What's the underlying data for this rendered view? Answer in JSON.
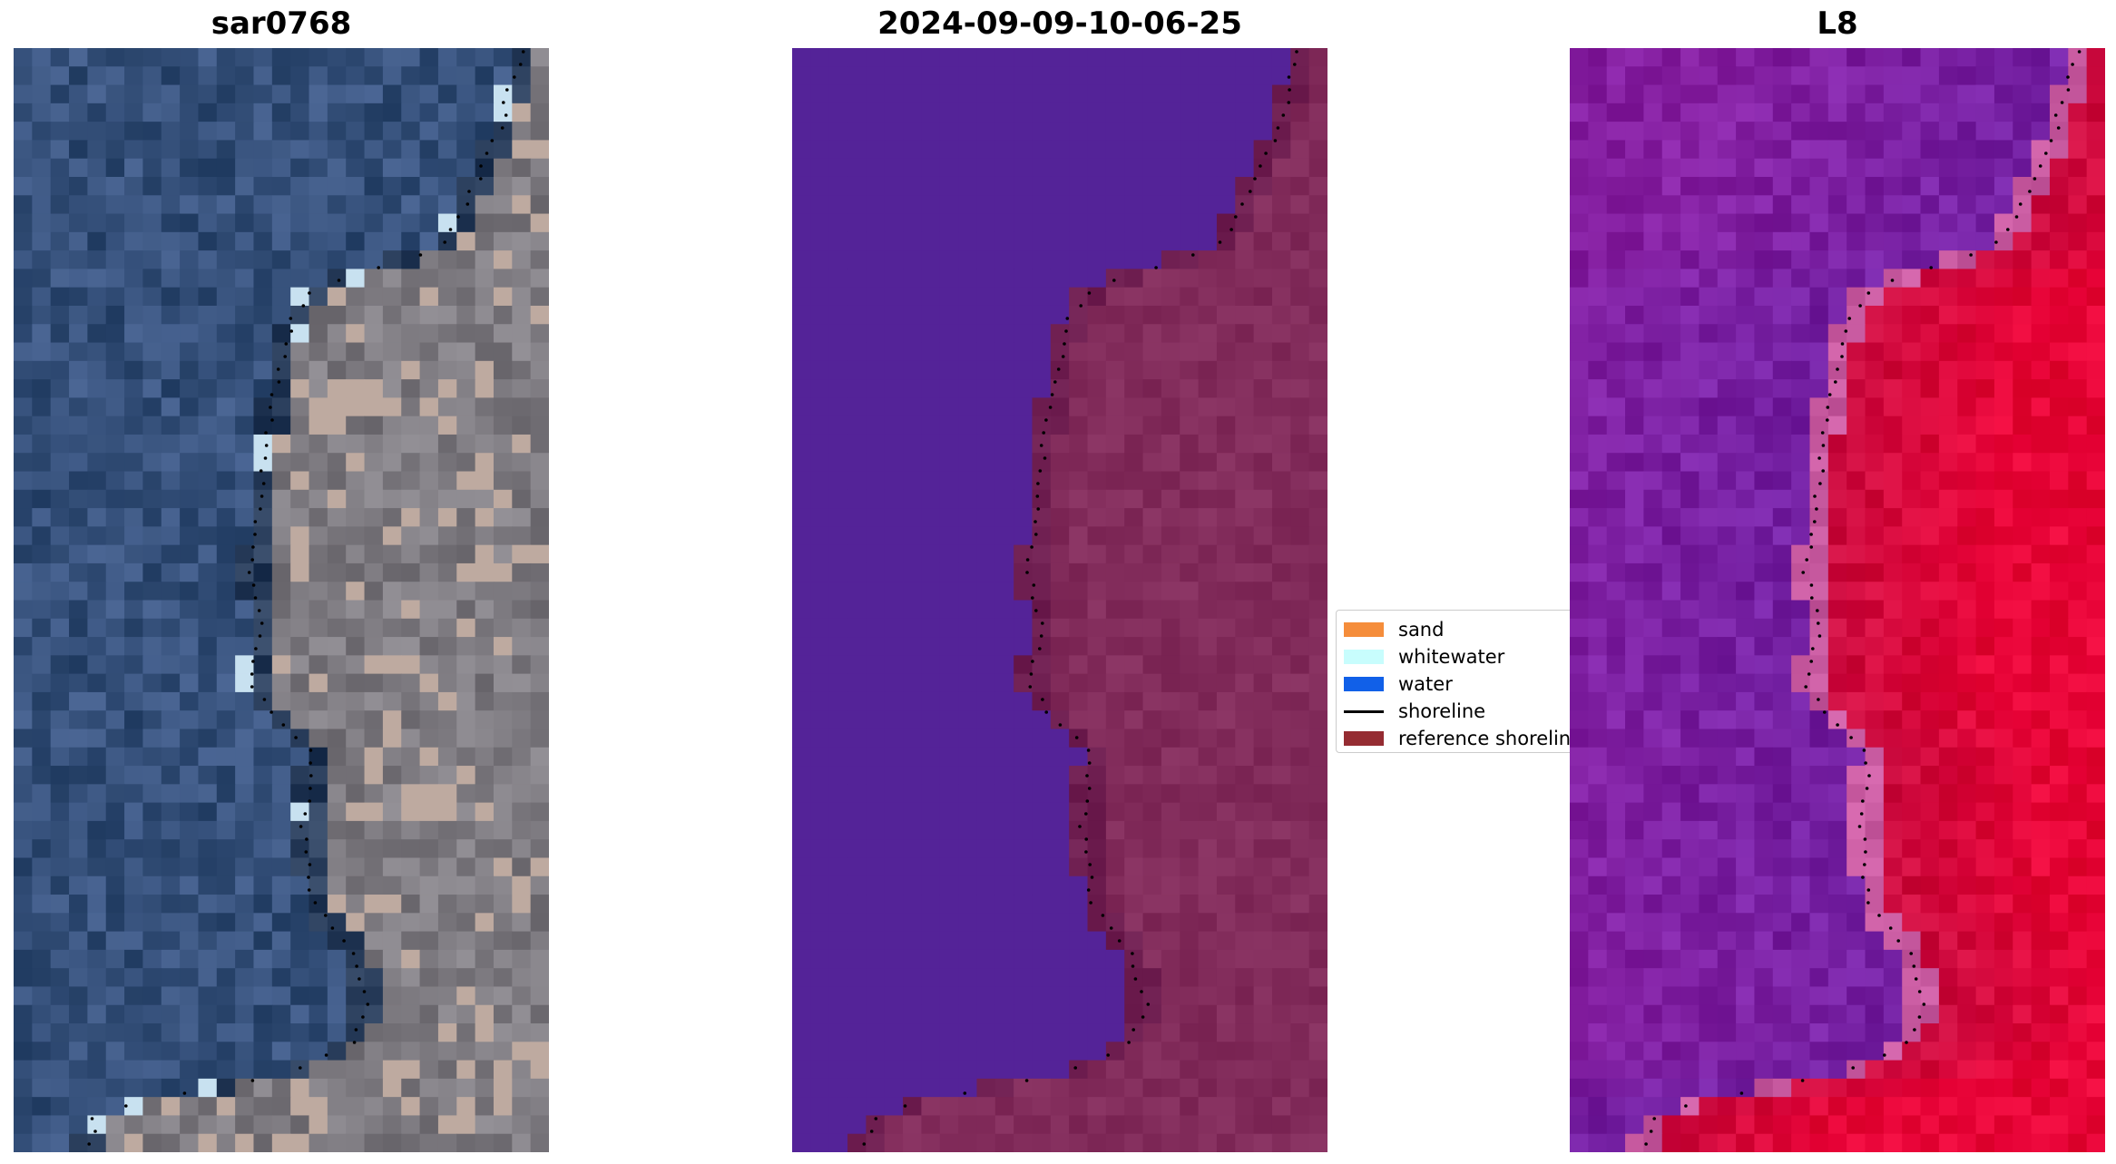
{
  "panels": [
    {
      "title": "sar0768",
      "type": "rgb-satellite"
    },
    {
      "title": "2024-09-09-10-06-25",
      "type": "classified"
    },
    {
      "title": "L8",
      "type": "false-color"
    }
  ],
  "legend": {
    "items": [
      {
        "label": "sand",
        "color": "#f58d3b",
        "kind": "patch"
      },
      {
        "label": "whitewater",
        "color": "#c8fdfd",
        "kind": "patch"
      },
      {
        "label": "water",
        "color": "#1160e8",
        "kind": "patch"
      },
      {
        "label": "shoreline",
        "color": "#000000",
        "kind": "line"
      },
      {
        "label": "reference shoreline",
        "color": "#952c32",
        "kind": "patch"
      }
    ]
  },
  "colors": {
    "sea_rgb": "#35507a",
    "land_rgb": "#7d7a80",
    "sea_class": "#542398",
    "land_class": "#822c5b",
    "sea_false": "#7220a2",
    "land_false": "#c80c40"
  }
}
